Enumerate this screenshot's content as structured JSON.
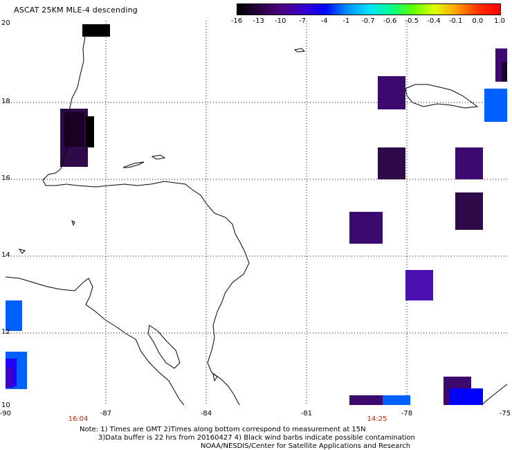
{
  "title": "ASCAT 25KM MLE-4 descending",
  "colorbar": {
    "labels": [
      "-16",
      "-13",
      "-10",
      "-7",
      "-4",
      "-1",
      "-0.7",
      "-0.6",
      "-0.5",
      "-0.4",
      "-0.1",
      "0.0",
      "1.0"
    ],
    "colors": [
      "#000000",
      "#2a0040",
      "#4b0082",
      "#3a00c8",
      "#0000ff",
      "#0090ff",
      "#00e0ff",
      "#00ff90",
      "#60ff00",
      "#e0ff00",
      "#ffa000",
      "#ff3000",
      "#ff0000"
    ]
  },
  "latitude_labels": [
    "20",
    "18",
    "16",
    "14",
    "12",
    "10"
  ],
  "longitude_labels": [
    "-90",
    "-87",
    "-84",
    "-81",
    "-78",
    "-75"
  ],
  "times": {
    "west": "16:04",
    "east": "14:25"
  },
  "notes": {
    "line1": "Note: 1) Times are GMT 2)Times along bottom correspond to measurement at 15N",
    "line2": "3)Data buffer is 22 hrs from 20160427 4) Black wind barbs indicate possible contamination",
    "line3": "NOAA/NESDIS/Center for Satellite Applications and Research"
  }
}
